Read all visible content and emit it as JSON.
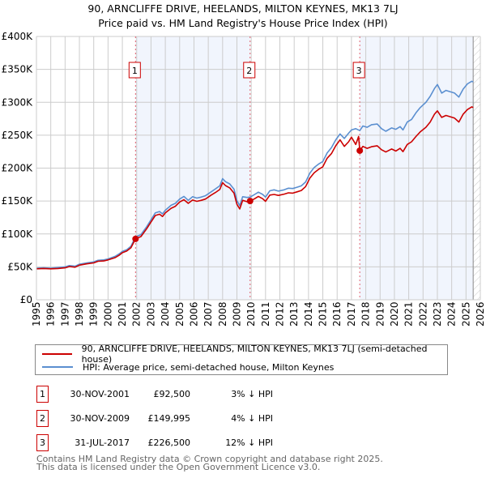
{
  "chart_data": {
    "type": "line",
    "title": "90, ARNCLIFFE DRIVE, HEELANDS, MILTON KEYNES, MK13 7LJ",
    "subtitle": "Price paid vs. HM Land Registry's House Price Index (HPI)",
    "xlabel": "",
    "ylabel": "",
    "xlim": [
      1995,
      2026
    ],
    "ylim": [
      0,
      400000
    ],
    "x_ticks": [
      1995,
      1996,
      1997,
      1998,
      1999,
      2000,
      2001,
      2002,
      2003,
      2004,
      2005,
      2006,
      2007,
      2008,
      2009,
      2010,
      2011,
      2012,
      2013,
      2014,
      2015,
      2016,
      2017,
      2018,
      2019,
      2020,
      2021,
      2022,
      2023,
      2024,
      2025,
      2026
    ],
    "y_ticks": [
      {
        "value": 0,
        "label": "£0"
      },
      {
        "value": 50000,
        "label": "£50K"
      },
      {
        "value": 100000,
        "label": "£100K"
      },
      {
        "value": 150000,
        "label": "£150K"
      },
      {
        "value": 200000,
        "label": "£200K"
      },
      {
        "value": 250000,
        "label": "£250K"
      },
      {
        "value": 300000,
        "label": "£300K"
      },
      {
        "value": 350000,
        "label": "£350K"
      },
      {
        "value": 400000,
        "label": "£400K"
      }
    ],
    "grid": true,
    "legend_position": "below",
    "shaded_ranges": [
      [
        2001.92,
        2009.92
      ],
      [
        2017.58,
        2025.5
      ]
    ],
    "hatched_after": 2025.5,
    "series": [
      {
        "name": "90, ARNCLIFFE DRIVE, HEELANDS, MILTON KEYNES, MK13 7LJ (semi-detached house)",
        "color": "#cc0000",
        "points": [
          [
            1995.0,
            47000
          ],
          [
            1995.5,
            47500
          ],
          [
            1996.0,
            47000
          ],
          [
            1996.5,
            47500
          ],
          [
            1997.0,
            48500
          ],
          [
            1997.3,
            50500
          ],
          [
            1997.7,
            49500
          ],
          [
            1998.0,
            52500
          ],
          [
            1998.5,
            54500
          ],
          [
            1999.0,
            56000
          ],
          [
            1999.3,
            58500
          ],
          [
            1999.7,
            59000
          ],
          [
            2000.0,
            60500
          ],
          [
            2000.5,
            64000
          ],
          [
            2000.8,
            68000
          ],
          [
            2001.0,
            71500
          ],
          [
            2001.3,
            74000
          ],
          [
            2001.6,
            79000
          ],
          [
            2001.92,
            92500
          ],
          [
            2002.3,
            96000
          ],
          [
            2002.7,
            108000
          ],
          [
            2003.0,
            118000
          ],
          [
            2003.3,
            128000
          ],
          [
            2003.6,
            130000
          ],
          [
            2003.8,
            126500
          ],
          [
            2004.0,
            132000
          ],
          [
            2004.4,
            139000
          ],
          [
            2004.7,
            142000
          ],
          [
            2005.0,
            148500
          ],
          [
            2005.3,
            152000
          ],
          [
            2005.6,
            146500
          ],
          [
            2005.9,
            151500
          ],
          [
            2006.2,
            149500
          ],
          [
            2006.5,
            151000
          ],
          [
            2006.8,
            153000
          ],
          [
            2007.2,
            159000
          ],
          [
            2007.5,
            163000
          ],
          [
            2007.8,
            167500
          ],
          [
            2008.0,
            178000
          ],
          [
            2008.2,
            173500
          ],
          [
            2008.5,
            170000
          ],
          [
            2008.8,
            162000
          ],
          [
            2009.0,
            145000
          ],
          [
            2009.2,
            138000
          ],
          [
            2009.4,
            151000
          ],
          [
            2009.7,
            149000
          ],
          [
            2009.92,
            149995
          ],
          [
            2010.2,
            153000
          ],
          [
            2010.5,
            157000
          ],
          [
            2010.8,
            153500
          ],
          [
            2011.0,
            149500
          ],
          [
            2011.3,
            159000
          ],
          [
            2011.6,
            160000
          ],
          [
            2011.9,
            158500
          ],
          [
            2012.3,
            160500
          ],
          [
            2012.6,
            162500
          ],
          [
            2012.9,
            162000
          ],
          [
            2013.2,
            164000
          ],
          [
            2013.5,
            166000
          ],
          [
            2013.8,
            172000
          ],
          [
            2014.1,
            185000
          ],
          [
            2014.4,
            193000
          ],
          [
            2014.7,
            198000
          ],
          [
            2015.0,
            202000
          ],
          [
            2015.3,
            215000
          ],
          [
            2015.6,
            222000
          ],
          [
            2015.9,
            234000
          ],
          [
            2016.2,
            243000
          ],
          [
            2016.5,
            233000
          ],
          [
            2016.8,
            240000
          ],
          [
            2017.0,
            247000
          ],
          [
            2017.3,
            236000
          ],
          [
            2017.5,
            248000
          ],
          [
            2017.58,
            226500
          ],
          [
            2017.8,
            233000
          ],
          [
            2018.1,
            230000
          ],
          [
            2018.4,
            232500
          ],
          [
            2018.8,
            234000
          ],
          [
            2019.1,
            228000
          ],
          [
            2019.4,
            224500
          ],
          [
            2019.8,
            229000
          ],
          [
            2020.1,
            226000
          ],
          [
            2020.4,
            230000
          ],
          [
            2020.6,
            225000
          ],
          [
            2020.9,
            236000
          ],
          [
            2021.2,
            240000
          ],
          [
            2021.5,
            248000
          ],
          [
            2021.8,
            255000
          ],
          [
            2022.2,
            262000
          ],
          [
            2022.5,
            270000
          ],
          [
            2022.8,
            282000
          ],
          [
            2023.0,
            287000
          ],
          [
            2023.3,
            277000
          ],
          [
            2023.6,
            280000
          ],
          [
            2023.9,
            278000
          ],
          [
            2024.2,
            276000
          ],
          [
            2024.5,
            270000
          ],
          [
            2024.8,
            282000
          ],
          [
            2025.1,
            289000
          ],
          [
            2025.4,
            293000
          ],
          [
            2025.5,
            292000
          ]
        ]
      },
      {
        "name": "HPI: Average price, semi-detached house, Milton Keynes",
        "color": "#5b8fd0",
        "points": [
          [
            1995.0,
            48000
          ],
          [
            1995.5,
            48500
          ],
          [
            1996.0,
            48000
          ],
          [
            1996.5,
            49000
          ],
          [
            1997.0,
            50000
          ],
          [
            1997.3,
            52000
          ],
          [
            1997.7,
            51000
          ],
          [
            1998.0,
            54000
          ],
          [
            1998.5,
            56000
          ],
          [
            1999.0,
            57500
          ],
          [
            1999.3,
            60000
          ],
          [
            1999.7,
            60500
          ],
          [
            2000.0,
            62000
          ],
          [
            2000.5,
            66000
          ],
          [
            2000.8,
            70000
          ],
          [
            2001.0,
            73500
          ],
          [
            2001.3,
            76000
          ],
          [
            2001.6,
            81500
          ],
          [
            2001.92,
            95500
          ],
          [
            2002.3,
            99000
          ],
          [
            2002.7,
            111000
          ],
          [
            2003.0,
            121500
          ],
          [
            2003.3,
            132000
          ],
          [
            2003.6,
            134000
          ],
          [
            2003.8,
            130500
          ],
          [
            2004.0,
            136000
          ],
          [
            2004.4,
            143500
          ],
          [
            2004.7,
            146500
          ],
          [
            2005.0,
            153000
          ],
          [
            2005.3,
            157000
          ],
          [
            2005.6,
            151000
          ],
          [
            2005.9,
            156500
          ],
          [
            2006.2,
            154500
          ],
          [
            2006.5,
            156000
          ],
          [
            2006.8,
            158000
          ],
          [
            2007.2,
            164000
          ],
          [
            2007.5,
            168500
          ],
          [
            2007.8,
            173000
          ],
          [
            2008.0,
            184000
          ],
          [
            2008.2,
            179500
          ],
          [
            2008.5,
            176000
          ],
          [
            2008.8,
            168000
          ],
          [
            2009.0,
            150500
          ],
          [
            2009.2,
            143000
          ],
          [
            2009.4,
            156500
          ],
          [
            2009.7,
            155500
          ],
          [
            2009.92,
            156000
          ],
          [
            2010.2,
            159500
          ],
          [
            2010.5,
            163500
          ],
          [
            2010.8,
            160000
          ],
          [
            2011.0,
            156000
          ],
          [
            2011.3,
            165500
          ],
          [
            2011.6,
            167000
          ],
          [
            2011.9,
            165000
          ],
          [
            2012.3,
            167000
          ],
          [
            2012.6,
            169500
          ],
          [
            2012.9,
            169000
          ],
          [
            2013.2,
            171000
          ],
          [
            2013.5,
            173000
          ],
          [
            2013.8,
            179000
          ],
          [
            2014.1,
            192500
          ],
          [
            2014.4,
            201000
          ],
          [
            2014.7,
            206000
          ],
          [
            2015.0,
            210000
          ],
          [
            2015.3,
            223000
          ],
          [
            2015.6,
            231000
          ],
          [
            2015.9,
            243000
          ],
          [
            2016.2,
            252000
          ],
          [
            2016.5,
            245000
          ],
          [
            2016.8,
            253000
          ],
          [
            2017.0,
            258000
          ],
          [
            2017.3,
            260000
          ],
          [
            2017.58,
            257000
          ],
          [
            2017.8,
            264000
          ],
          [
            2018.1,
            262000
          ],
          [
            2018.4,
            266000
          ],
          [
            2018.8,
            267000
          ],
          [
            2019.1,
            260000
          ],
          [
            2019.4,
            256000
          ],
          [
            2019.8,
            261000
          ],
          [
            2020.1,
            259000
          ],
          [
            2020.4,
            263000
          ],
          [
            2020.6,
            258000
          ],
          [
            2020.9,
            270000
          ],
          [
            2021.2,
            274000
          ],
          [
            2021.5,
            284000
          ],
          [
            2021.8,
            292000
          ],
          [
            2022.2,
            300000
          ],
          [
            2022.5,
            309000
          ],
          [
            2022.8,
            321000
          ],
          [
            2023.0,
            327000
          ],
          [
            2023.3,
            314000
          ],
          [
            2023.6,
            318000
          ],
          [
            2023.9,
            316000
          ],
          [
            2024.2,
            314000
          ],
          [
            2024.5,
            308000
          ],
          [
            2024.8,
            320000
          ],
          [
            2025.1,
            328000
          ],
          [
            2025.4,
            332000
          ],
          [
            2025.5,
            331000
          ]
        ]
      }
    ],
    "annotations": [
      {
        "label": "1",
        "x": 2001.92,
        "y": 92500
      },
      {
        "label": "2",
        "x": 2009.92,
        "y": 149995
      },
      {
        "label": "3",
        "x": 2017.58,
        "y": 226500
      }
    ]
  },
  "header": {
    "title": "90, ARNCLIFFE DRIVE, HEELANDS, MILTON KEYNES, MK13 7LJ",
    "subtitle": "Price paid vs. HM Land Registry's House Price Index (HPI)"
  },
  "legend": {
    "items": [
      {
        "label": "90, ARNCLIFFE DRIVE, HEELANDS, MILTON KEYNES, MK13 7LJ (semi-detached house)",
        "color": "#cc0000"
      },
      {
        "label": "HPI: Average price, semi-detached house, Milton Keynes",
        "color": "#5b8fd0"
      }
    ]
  },
  "sales": [
    {
      "num": "1",
      "date": "30-NOV-2001",
      "price": "£92,500",
      "hpi": "3% ↓ HPI"
    },
    {
      "num": "2",
      "date": "30-NOV-2009",
      "price": "£149,995",
      "hpi": "4% ↓ HPI"
    },
    {
      "num": "3",
      "date": "31-JUL-2017",
      "price": "£226,500",
      "hpi": "12% ↓ HPI"
    }
  ],
  "footer": {
    "line1": "Contains HM Land Registry data © Crown copyright and database right 2025.",
    "line2": "This data is licensed under the Open Government Licence v3.0."
  }
}
